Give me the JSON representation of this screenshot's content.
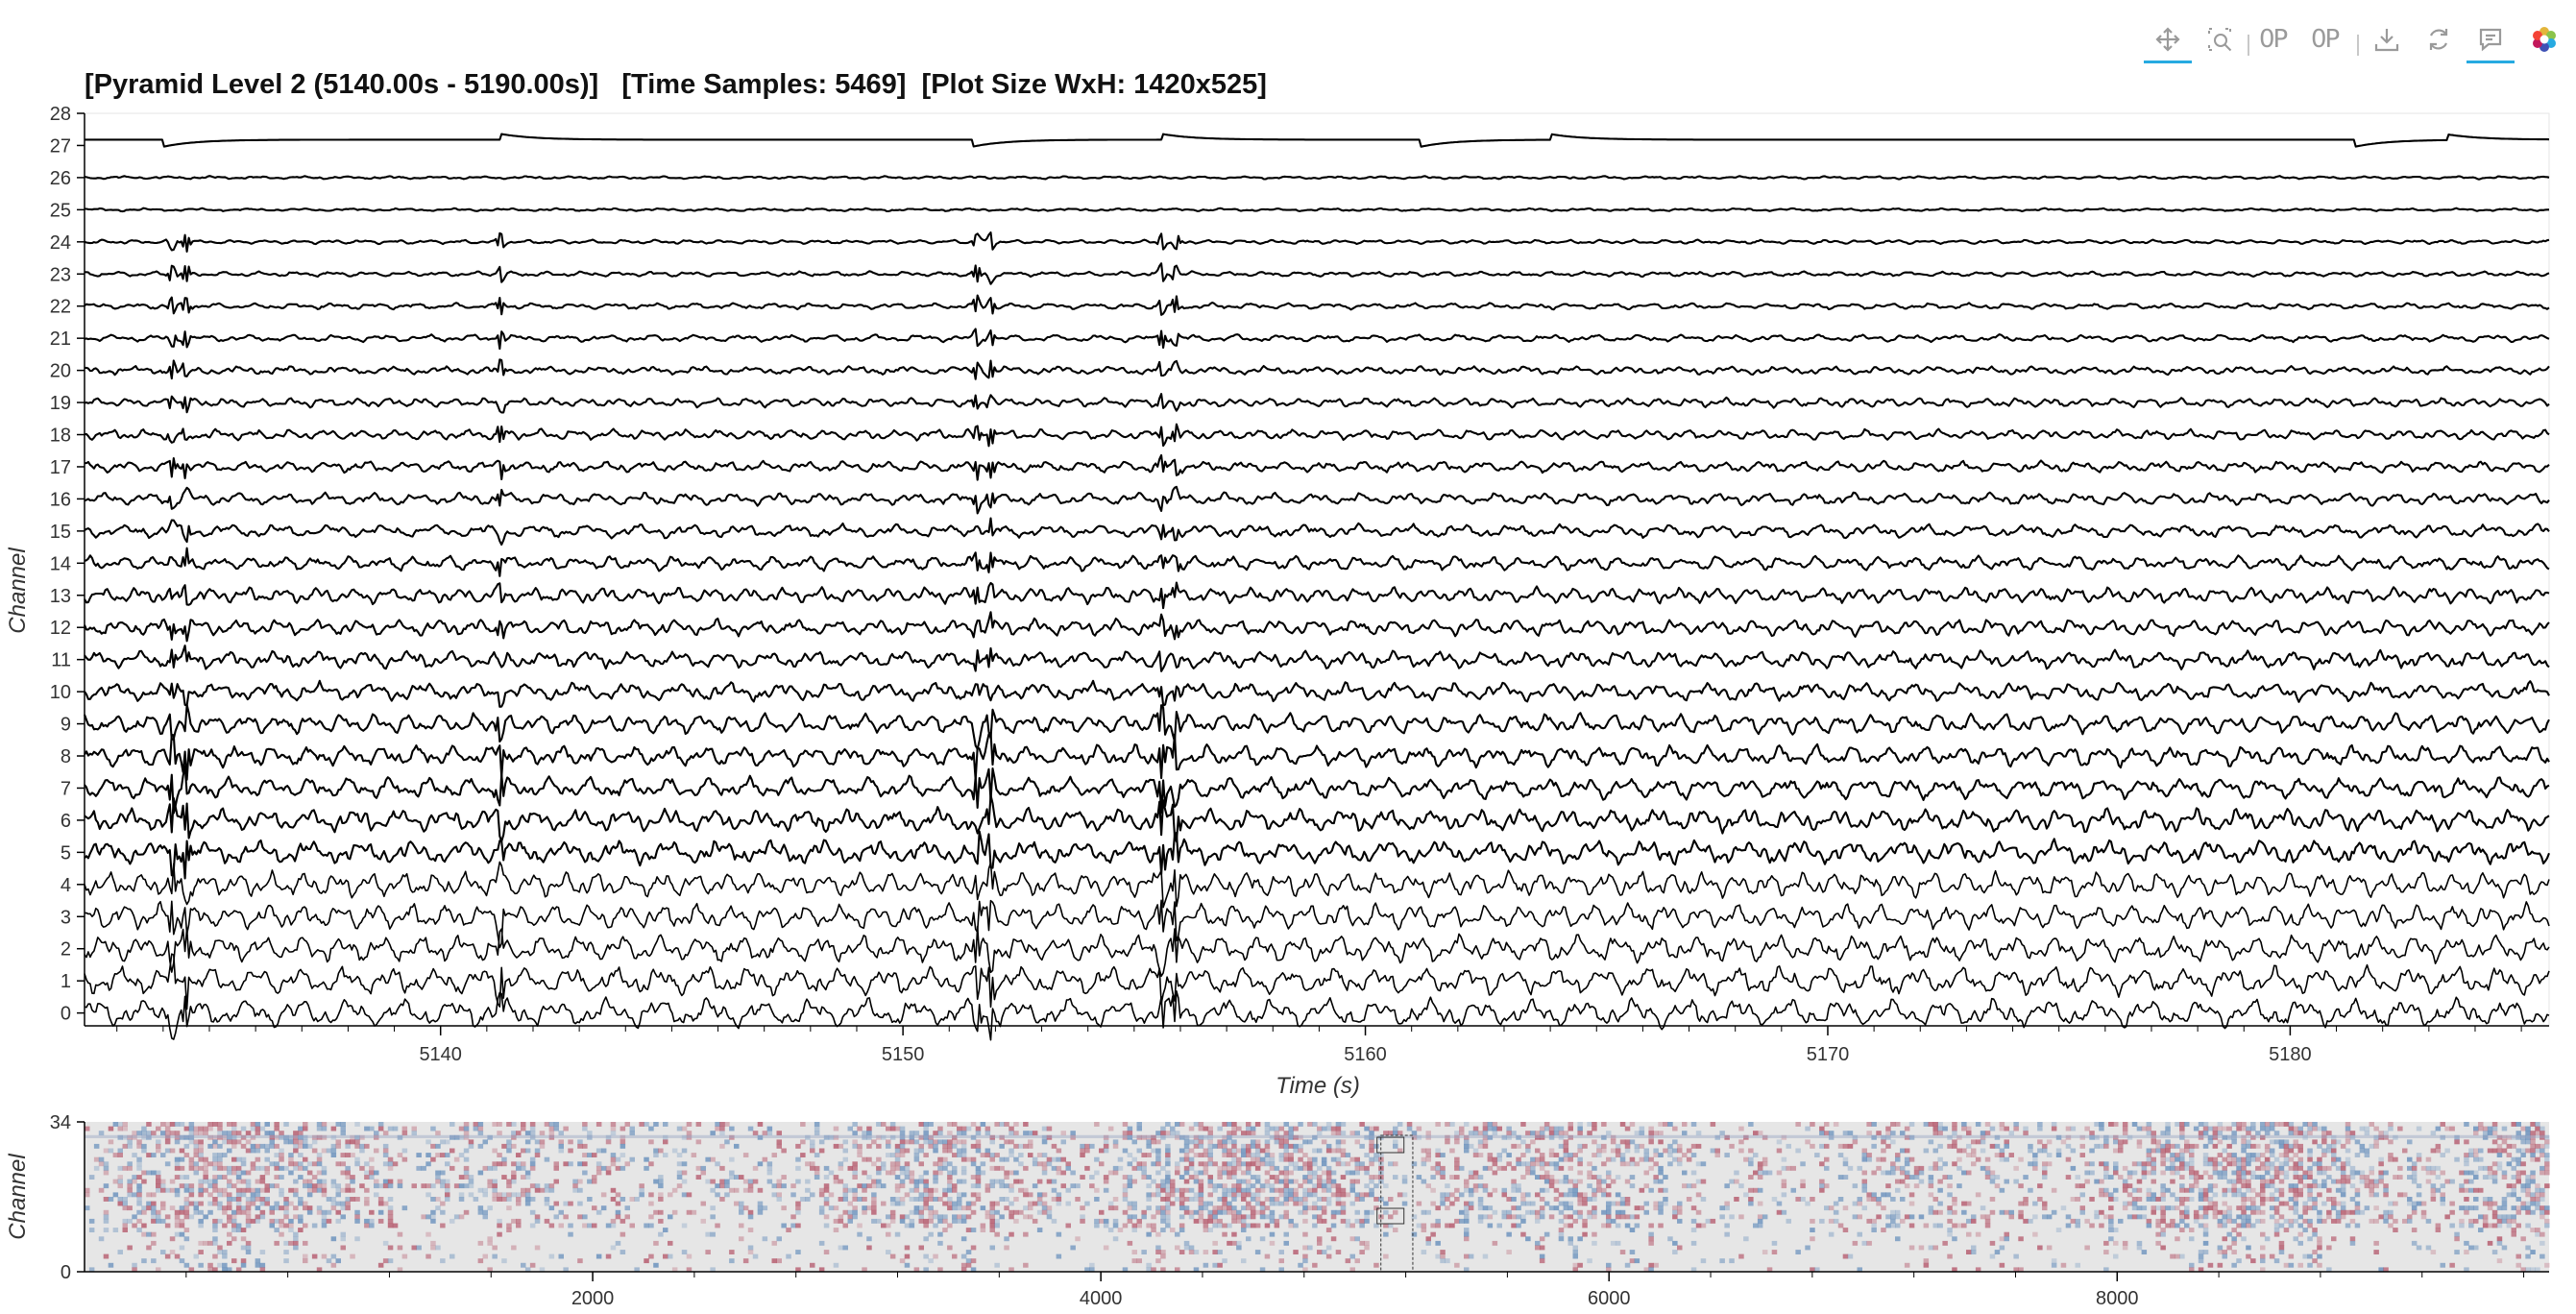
{
  "toolbar": {
    "tools": [
      {
        "icon": "pan-icon",
        "active": true
      },
      {
        "icon": "box-zoom-icon",
        "active": false
      },
      {
        "icon": "zoom-in-icon",
        "active": false
      },
      {
        "icon": "zoom-out-icon",
        "active": false
      },
      {
        "icon": "save-icon",
        "active": false
      },
      {
        "icon": "reset-icon",
        "active": false
      },
      {
        "icon": "hover-icon",
        "active": true
      },
      {
        "icon": "bokeh-logo",
        "active": false
      }
    ]
  },
  "main_plot": {
    "title": "[Pyramid Level 2 (5140.00s - 5190.00s)]   [Time Samples: 5469]  [Plot Size WxH: 1420x525]",
    "xlabel": "Time (s)",
    "ylabel": "Channel",
    "x_ticks": [
      "5140",
      "5150",
      "5160",
      "5170",
      "5180"
    ],
    "y_ticks": [
      "0",
      "1",
      "2",
      "3",
      "4",
      "5",
      "6",
      "7",
      "8",
      "9",
      "10",
      "11",
      "12",
      "13",
      "14",
      "15",
      "16",
      "17",
      "18",
      "19",
      "20",
      "21",
      "22",
      "23",
      "24",
      "25",
      "26",
      "27",
      "28"
    ]
  },
  "minimap": {
    "xlabel": "",
    "ylabel": "Channel",
    "x_ticks": [
      "2000",
      "4000",
      "6000",
      "8000"
    ],
    "y_ticks": [
      "0",
      "34"
    ]
  },
  "chart_data": [
    {
      "type": "line",
      "title": "[Pyramid Level 2 (5140.00s - 5190.00s)]   [Time Samples: 5469]  [Plot Size WxH: 1420x525]",
      "xlabel": "Time (s)",
      "ylabel": "Channel",
      "xlim": [
        5132.3,
        5185.6
      ],
      "ylim": [
        -0.4,
        28
      ],
      "series_count": 28,
      "series_offsets": [
        0,
        1,
        2,
        3,
        4,
        5,
        6,
        7,
        8,
        9,
        10,
        11,
        12,
        13,
        14,
        15,
        16,
        17,
        18,
        19,
        20,
        21,
        22,
        23,
        24,
        25,
        26,
        27
      ],
      "line_color": "#000000",
      "large_transients_s": [
        5134.2,
        5134.5,
        5141.3,
        5151.6,
        5151.9,
        5155.6,
        5155.9
      ],
      "grid": false
    },
    {
      "type": "heatmap",
      "xlabel": "",
      "ylabel": "Channel",
      "xlim": [
        0,
        9700
      ],
      "ylim": [
        0,
        34
      ],
      "colors": [
        "#b04a5f",
        "#e6e6e6",
        "#5b87b8"
      ],
      "viewport_x": [
        5140,
        5190
      ],
      "grid": false
    }
  ]
}
